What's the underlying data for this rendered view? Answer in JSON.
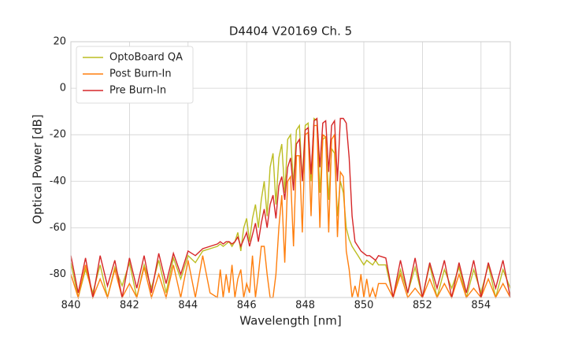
{
  "chart_data": {
    "type": "line",
    "title": "D4404 V20169 Ch. 5",
    "x_label": "Wavelength [nm]",
    "y_label": "Optical Power [dB]",
    "xlim": [
      840,
      855
    ],
    "ylim": [
      -90,
      20
    ],
    "xticks": [
      840,
      842,
      844,
      846,
      848,
      850,
      852,
      854
    ],
    "yticks": [
      -80,
      -60,
      -40,
      -20,
      0,
      20
    ],
    "grid": true,
    "legend": "upper left",
    "x": [
      840,
      840.25,
      840.5,
      840.75,
      841,
      841.25,
      841.5,
      841.75,
      842,
      842.25,
      842.5,
      842.75,
      843,
      843.25,
      843.5,
      843.75,
      844,
      844.25,
      844.5,
      844.75,
      845,
      845.1,
      845.2,
      845.3,
      845.4,
      845.5,
      845.6,
      845.7,
      845.8,
      845.9,
      846,
      846.1,
      846.2,
      846.3,
      846.4,
      846.5,
      846.6,
      846.7,
      846.8,
      846.9,
      847,
      847.1,
      847.2,
      847.3,
      847.4,
      847.5,
      847.6,
      847.7,
      847.8,
      847.9,
      848,
      848.1,
      848.2,
      848.3,
      848.4,
      848.5,
      848.6,
      848.7,
      848.8,
      848.9,
      849,
      849.1,
      849.2,
      849.3,
      849.4,
      849.5,
      849.6,
      849.7,
      849.8,
      849.9,
      850,
      850.1,
      850.2,
      850.3,
      850.4,
      850.5,
      850.75,
      851,
      851.25,
      851.5,
      851.75,
      852,
      852.25,
      852.5,
      852.75,
      853,
      853.25,
      853.5,
      853.75,
      854,
      854.25,
      854.5,
      854.75,
      855
    ],
    "series": [
      {
        "name": "OptoBoard QA",
        "color": "#bcbd22",
        "values": [
          -75,
          -90,
          -78,
          -88,
          -76,
          -90,
          -77,
          -85,
          -75,
          -90,
          -76,
          -86,
          -74,
          -88,
          -73,
          -82,
          -72,
          -75,
          -70,
          -69,
          -68,
          -67,
          -68,
          -67,
          -66,
          -68,
          -66,
          -62,
          -70,
          -60,
          -56,
          -66,
          -56,
          -50,
          -60,
          -48,
          -40,
          -55,
          -34,
          -28,
          -50,
          -30,
          -24,
          -45,
          -22,
          -20,
          -42,
          -18,
          -16,
          -40,
          -16,
          -15,
          -40,
          -13,
          -14,
          -45,
          -22,
          -21,
          -48,
          -26,
          -28,
          -55,
          -40,
          -45,
          -60,
          -65,
          -68,
          -70,
          -72,
          -74,
          -76,
          -74,
          -75,
          -76,
          -74,
          -76,
          -76,
          -90,
          -78,
          -88,
          -77,
          -90,
          -76,
          -90,
          -78,
          -86,
          -77,
          -90,
          -78,
          -88,
          -76,
          -90,
          -78,
          -86
        ]
      },
      {
        "name": "Post Burn-In",
        "color": "#ff7f0e",
        "values": [
          -80,
          -90,
          -76,
          -90,
          -82,
          -90,
          -78,
          -90,
          -84,
          -90,
          -77,
          -90,
          -80,
          -90,
          -76,
          -90,
          -74,
          -90,
          -72,
          -88,
          -90,
          -78,
          -90,
          -80,
          -88,
          -76,
          -90,
          -82,
          -78,
          -90,
          -84,
          -88,
          -72,
          -90,
          -80,
          -68,
          -68,
          -80,
          -90,
          -90,
          -80,
          -60,
          -46,
          -75,
          -40,
          -38,
          -68,
          -29,
          -29,
          -62,
          -20,
          -19,
          -55,
          -16,
          -16,
          -60,
          -20,
          -21,
          -62,
          -22,
          -20,
          -64,
          -36,
          -38,
          -70,
          -78,
          -90,
          -85,
          -90,
          -80,
          -90,
          -82,
          -90,
          -86,
          -90,
          -84,
          -84,
          -90,
          -80,
          -90,
          -86,
          -90,
          -82,
          -90,
          -84,
          -90,
          -80,
          -90,
          -86,
          -90,
          -82,
          -90,
          -84,
          -90
        ]
      },
      {
        "name": "Pre Burn-In",
        "color": "#d62728",
        "values": [
          -72,
          -88,
          -73,
          -90,
          -72,
          -85,
          -74,
          -90,
          -73,
          -86,
          -72,
          -88,
          -71,
          -84,
          -71,
          -80,
          -70,
          -72,
          -69,
          -68,
          -67,
          -66,
          -67,
          -66,
          -66,
          -67,
          -66,
          -64,
          -68,
          -65,
          -62,
          -68,
          -63,
          -58,
          -66,
          -58,
          -52,
          -60,
          -50,
          -46,
          -56,
          -42,
          -38,
          -48,
          -34,
          -30,
          -44,
          -24,
          -22,
          -40,
          -18,
          -17,
          -37,
          -14,
          -13,
          -34,
          -15,
          -14,
          -36,
          -16,
          -14,
          -40,
          -13,
          -13,
          -15,
          -30,
          -55,
          -66,
          -68,
          -70,
          -71,
          -72,
          -72,
          -73,
          -74,
          -72,
          -73,
          -90,
          -74,
          -88,
          -73,
          -90,
          -75,
          -86,
          -74,
          -90,
          -75,
          -88,
          -74,
          -90,
          -75,
          -86,
          -74,
          -90
        ]
      }
    ]
  }
}
